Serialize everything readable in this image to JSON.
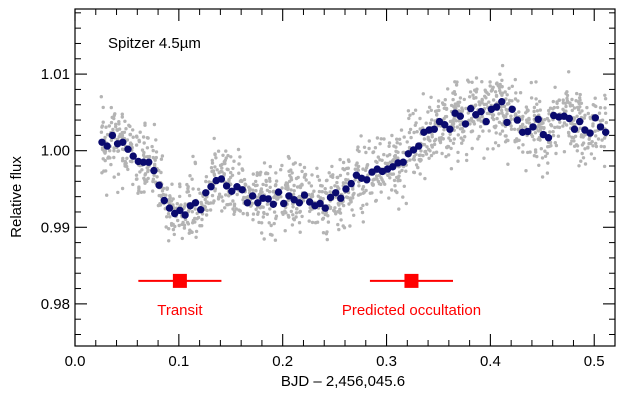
{
  "chart_data": {
    "type": "scatter",
    "title": "",
    "annotation": "Spitzer 4.5µm",
    "xlabel": "BJD – 2,456,045.6",
    "ylabel": "Relative flux",
    "xlim": [
      0.0,
      0.52
    ],
    "ylim": [
      0.9745,
      1.0185
    ],
    "x_ticks": [
      0.0,
      0.1,
      0.2,
      0.3,
      0.4,
      0.5
    ],
    "x_tick_labels": [
      "0.0",
      "0.1",
      "0.2",
      "0.3",
      "0.4",
      "0.5"
    ],
    "y_ticks": [
      0.98,
      0.99,
      1.0,
      1.01
    ],
    "y_tick_labels": [
      "0.98",
      "0.99",
      "1.00",
      "1.01"
    ],
    "grid": false,
    "colors": {
      "raw": "#b4b4b4",
      "binned": "#0a0a6e",
      "markers": "#ff0000",
      "axes": "#000000"
    },
    "series": [
      {
        "type": "binned",
        "x": [
          0.026,
          0.031,
          0.036,
          0.041,
          0.046,
          0.051,
          0.056,
          0.061,
          0.066,
          0.071,
          0.076,
          0.081,
          0.086,
          0.091,
          0.096,
          0.101,
          0.106,
          0.111,
          0.116,
          0.121,
          0.126,
          0.131,
          0.136,
          0.141,
          0.146,
          0.151,
          0.156,
          0.161,
          0.166,
          0.171,
          0.176,
          0.181,
          0.186,
          0.191,
          0.196,
          0.201,
          0.206,
          0.211,
          0.216,
          0.221,
          0.226,
          0.231,
          0.236,
          0.241,
          0.246,
          0.251,
          0.256,
          0.261,
          0.266,
          0.271,
          0.276,
          0.281,
          0.286,
          0.291,
          0.296,
          0.301,
          0.306,
          0.311,
          0.316,
          0.321,
          0.326,
          0.331,
          0.336,
          0.341,
          0.346,
          0.351,
          0.356,
          0.361,
          0.366,
          0.371,
          0.376,
          0.381,
          0.386,
          0.391,
          0.396,
          0.401,
          0.406,
          0.411,
          0.416,
          0.421,
          0.426,
          0.431,
          0.436,
          0.441,
          0.446,
          0.451,
          0.456,
          0.461,
          0.466,
          0.471,
          0.476,
          0.481,
          0.486,
          0.491,
          0.496,
          0.501,
          0.506,
          0.511
        ],
        "y": [
          1.0011,
          1.0006,
          1.002,
          1.0009,
          1.0011,
          1.0002,
          0.9993,
          0.9986,
          0.9985,
          0.9985,
          0.9974,
          0.9955,
          0.9935,
          0.9925,
          0.9918,
          0.9922,
          0.9916,
          0.9928,
          0.9932,
          0.9923,
          0.9945,
          0.9953,
          0.9961,
          0.9963,
          0.9954,
          0.9947,
          0.9953,
          0.9949,
          0.9932,
          0.9941,
          0.9932,
          0.9938,
          0.9937,
          0.993,
          0.9946,
          0.9931,
          0.9941,
          0.9936,
          0.9932,
          0.9942,
          0.9933,
          0.9928,
          0.9931,
          0.9925,
          0.9939,
          0.9945,
          0.9938,
          0.995,
          0.9957,
          0.9968,
          0.9964,
          0.9962,
          0.9972,
          0.9976,
          0.9973,
          0.9976,
          0.9979,
          0.9984,
          0.9985,
          0.9996,
          1.0001,
          1.0006,
          1.0024,
          1.0027,
          1.0028,
          1.0038,
          1.0034,
          1.0028,
          1.0049,
          1.0045,
          1.0035,
          1.0055,
          1.0047,
          1.0051,
          1.0038,
          1.0054,
          1.0057,
          1.0064,
          1.0037,
          1.0054,
          1.004,
          1.0024,
          1.0025,
          1.0031,
          1.0041,
          1.0021,
          1.0017,
          1.0046,
          1.0044,
          1.0045,
          1.0042,
          1.0028,
          1.0038,
          1.0027,
          1.0023,
          1.0043,
          1.0031,
          1.0024
        ]
      }
    ],
    "raw_points": {
      "description_of_trend": "same shape as binned series with scatter of about 0.0022",
      "x_range": [
        0.025,
        0.512
      ],
      "n_points": 1600,
      "spread": 0.0022
    },
    "markers": [
      {
        "label": "Transit",
        "x": 0.101,
        "y": 0.983,
        "xerr": 0.04
      },
      {
        "label": "Predicted occultation",
        "x": 0.324,
        "y": 0.983,
        "xerr": 0.04
      }
    ]
  }
}
